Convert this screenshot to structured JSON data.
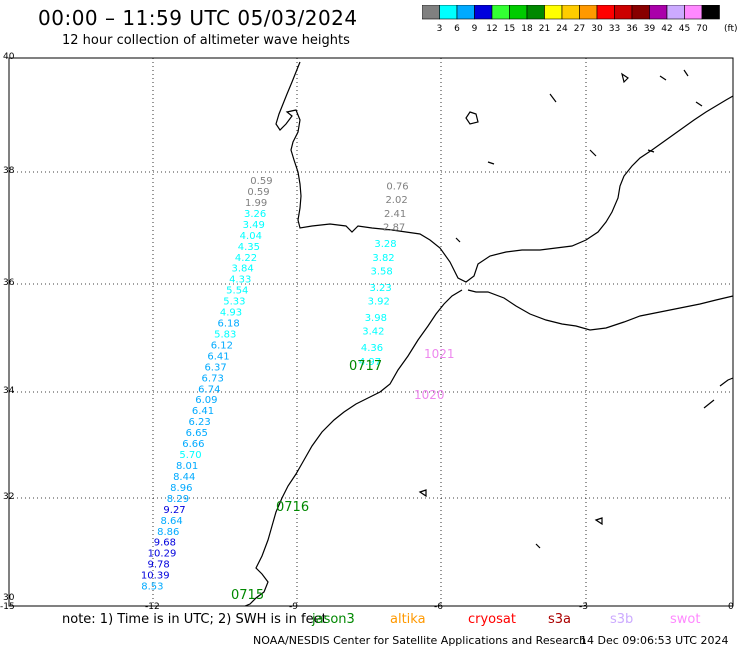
{
  "header": {
    "title": "00:00 – 11:59 UTC 05/03/2024",
    "subtitle": "12 hour collection of altimeter wave heights"
  },
  "colorbar": {
    "unit": "(ft)",
    "labels": [
      "3",
      "6",
      "9",
      "12",
      "15",
      "18",
      "21",
      "24",
      "27",
      "30",
      "33",
      "36",
      "39",
      "42",
      "45",
      "70"
    ],
    "colors": [
      "#808080",
      "#00ffff",
      "#00aaff",
      "#0000dd",
      "#33ff33",
      "#00cc00",
      "#008800",
      "#ffff00",
      "#ffcc00",
      "#ff9900",
      "#ff0000",
      "#cc0000",
      "#880000",
      "#aa00aa",
      "#ccaaff",
      "#ff88ff",
      "#000000"
    ]
  },
  "axes": {
    "y_ticks": [
      "30",
      "32",
      "34",
      "36",
      "38",
      "40"
    ],
    "x_ticks": [
      "-15",
      "-12",
      "-9",
      "-6",
      "-3",
      "0"
    ]
  },
  "passes": [
    {
      "label": "0715",
      "label_color": "#008800",
      "points": [
        {
          "lon": -9.77,
          "lat": 37.7,
          "swh": "0.59",
          "color": "#808080"
        },
        {
          "lon": -9.83,
          "lat": 37.5,
          "swh": "0.59",
          "color": "#808080"
        },
        {
          "lon": -9.88,
          "lat": 37.3,
          "swh": "1.99",
          "color": "#808080"
        },
        {
          "lon": -9.9,
          "lat": 37.1,
          "swh": "3.26",
          "color": "#00ffff"
        },
        {
          "lon": -9.93,
          "lat": 36.9,
          "swh": "3.49",
          "color": "#00ffff"
        },
        {
          "lon": -9.99,
          "lat": 36.7,
          "swh": "4.04",
          "color": "#00ffff"
        },
        {
          "lon": -10.03,
          "lat": 36.5,
          "swh": "4.35",
          "color": "#00ffff"
        },
        {
          "lon": -10.09,
          "lat": 36.3,
          "swh": "4.22",
          "color": "#00ffff"
        },
        {
          "lon": -10.16,
          "lat": 36.1,
          "swh": "3.84",
          "color": "#00ffff"
        },
        {
          "lon": -10.21,
          "lat": 35.9,
          "swh": "4.33",
          "color": "#00ffff"
        },
        {
          "lon": -10.27,
          "lat": 35.7,
          "swh": "5.54",
          "color": "#00ffff"
        },
        {
          "lon": -10.33,
          "lat": 35.5,
          "swh": "5.33",
          "color": "#00ffff"
        },
        {
          "lon": -10.4,
          "lat": 35.3,
          "swh": "4.93",
          "color": "#00ffff"
        },
        {
          "lon": -10.45,
          "lat": 35.1,
          "swh": "6.18",
          "color": "#00aaff"
        },
        {
          "lon": -10.52,
          "lat": 34.9,
          "swh": "5.83",
          "color": "#00ffff"
        },
        {
          "lon": -10.59,
          "lat": 34.7,
          "swh": "6.12",
          "color": "#00aaff"
        },
        {
          "lon": -10.66,
          "lat": 34.5,
          "swh": "6.41",
          "color": "#00aaff"
        },
        {
          "lon": -10.72,
          "lat": 34.3,
          "swh": "6.37",
          "color": "#00aaff"
        },
        {
          "lon": -10.78,
          "lat": 34.1,
          "swh": "6.73",
          "color": "#00aaff"
        },
        {
          "lon": -10.85,
          "lat": 33.9,
          "swh": "6.74",
          "color": "#00aaff"
        },
        {
          "lon": -10.91,
          "lat": 33.7,
          "swh": "6.09",
          "color": "#00aaff"
        },
        {
          "lon": -10.98,
          "lat": 33.5,
          "swh": "6.41",
          "color": "#00aaff"
        },
        {
          "lon": -11.05,
          "lat": 33.3,
          "swh": "6.23",
          "color": "#00aaff"
        },
        {
          "lon": -11.11,
          "lat": 33.1,
          "swh": "6.65",
          "color": "#00aaff"
        },
        {
          "lon": -11.18,
          "lat": 32.9,
          "swh": "6.66",
          "color": "#00aaff"
        },
        {
          "lon": -11.24,
          "lat": 32.7,
          "swh": "5.70",
          "color": "#00ffff"
        },
        {
          "lon": -11.31,
          "lat": 32.5,
          "swh": "8.01",
          "color": "#00aaff"
        },
        {
          "lon": -11.37,
          "lat": 32.3,
          "swh": "8.44",
          "color": "#00aaff"
        },
        {
          "lon": -11.43,
          "lat": 32.1,
          "swh": "8.96",
          "color": "#00aaff"
        },
        {
          "lon": -11.5,
          "lat": 31.9,
          "swh": "8.29",
          "color": "#00aaff"
        },
        {
          "lon": -11.57,
          "lat": 31.7,
          "swh": "9.27",
          "color": "#0000dd"
        },
        {
          "lon": -11.63,
          "lat": 31.5,
          "swh": "8.64",
          "color": "#00aaff"
        },
        {
          "lon": -11.7,
          "lat": 31.3,
          "swh": "8.86",
          "color": "#00aaff"
        },
        {
          "lon": -11.77,
          "lat": 31.1,
          "swh": "9.68",
          "color": "#0000dd"
        },
        {
          "lon": -11.83,
          "lat": 30.9,
          "swh": "10.29",
          "color": "#0000dd"
        },
        {
          "lon": -11.9,
          "lat": 30.7,
          "swh": "9.78",
          "color": "#0000dd"
        },
        {
          "lon": -11.97,
          "lat": 30.5,
          "swh": "10.39",
          "color": "#0000dd"
        },
        {
          "lon": -12.03,
          "lat": 30.3,
          "swh": "8.53",
          "color": "#00aaff"
        }
      ]
    },
    {
      "label": "0717",
      "label_color": "#008800",
      "points": [
        {
          "lon": -6.95,
          "lat": 37.6,
          "swh": "0.76",
          "color": "#808080"
        },
        {
          "lon": -6.97,
          "lat": 37.35,
          "swh": "2.02",
          "color": "#808080"
        },
        {
          "lon": -7.0,
          "lat": 37.1,
          "swh": "2.41",
          "color": "#808080"
        },
        {
          "lon": -7.02,
          "lat": 36.85,
          "swh": "2.87",
          "color": "#808080"
        },
        {
          "lon": -7.2,
          "lat": 36.55,
          "swh": "3.28",
          "color": "#00ffff"
        },
        {
          "lon": -7.24,
          "lat": 36.3,
          "swh": "3.82",
          "color": "#00ffff"
        },
        {
          "lon": -7.28,
          "lat": 36.05,
          "swh": "3.58",
          "color": "#00ffff"
        },
        {
          "lon": -7.3,
          "lat": 35.75,
          "swh": "3.23",
          "color": "#00ffff"
        },
        {
          "lon": -7.34,
          "lat": 35.5,
          "swh": "3.92",
          "color": "#00ffff"
        },
        {
          "lon": -7.4,
          "lat": 35.2,
          "swh": "3.98",
          "color": "#00ffff"
        },
        {
          "lon": -7.45,
          "lat": 34.95,
          "swh": "3.42",
          "color": "#00ffff"
        },
        {
          "lon": -7.48,
          "lat": 34.65,
          "swh": "4.36",
          "color": "#00ffff"
        },
        {
          "lon": -7.52,
          "lat": 34.4,
          "swh": "4.97",
          "color": "#00ffff"
        }
      ]
    }
  ],
  "labels_extra": [
    {
      "text": "0716",
      "color": "#008800"
    },
    {
      "text": "1021",
      "color": "#ee88ee"
    },
    {
      "text": "1020",
      "color": "#ee88ee"
    }
  ],
  "footer": {
    "note": "note:  1) Time is in UTC;  2) SWH is in feet",
    "satellites": [
      {
        "name": "jason3",
        "color": "#008800"
      },
      {
        "name": "altika",
        "color": "#ff9900"
      },
      {
        "name": "cryosat",
        "color": "#ff0000"
      },
      {
        "name": "s3a",
        "color": "#aa0000"
      },
      {
        "name": "s3b",
        "color": "#ccaaff"
      },
      {
        "name": "swot",
        "color": "#ff88ff"
      }
    ],
    "credit": "NOAA/NESDIS Center for Satellite Applications and Research",
    "timestamp": "14 Dec 09:06:53 UTC 2024"
  }
}
